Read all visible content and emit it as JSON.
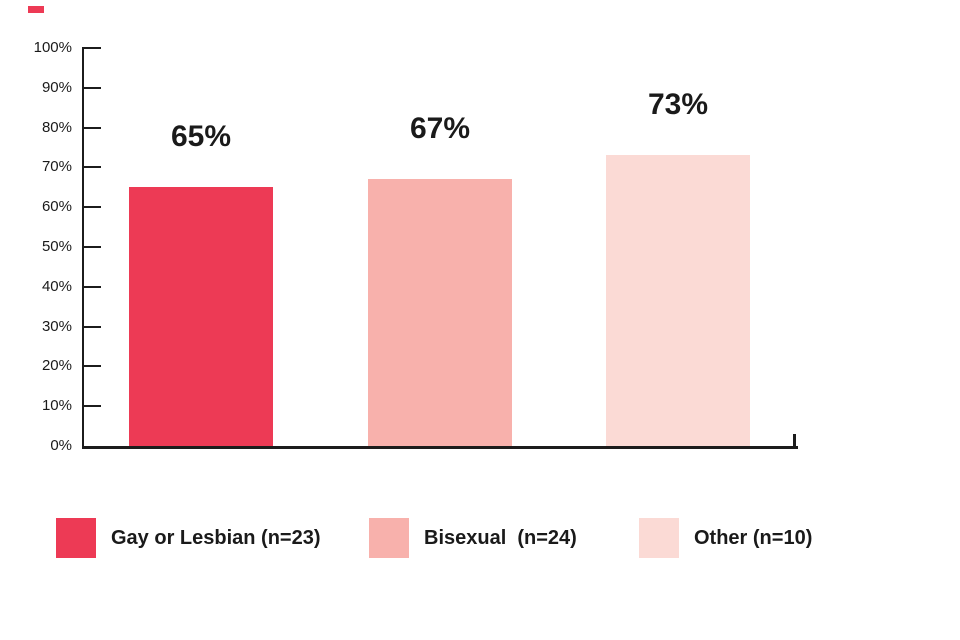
{
  "page": {
    "background": "#ffffff"
  },
  "decoration": {
    "corner_dash_color": "#ED3A55"
  },
  "chart_data": {
    "type": "bar",
    "title": "",
    "xlabel": "",
    "ylabel": "",
    "categories": [
      "Gay or Lesbian (n=23)",
      "Bisexual  (n=24)",
      "Other (n=10)"
    ],
    "values": [
      65,
      67,
      73
    ],
    "bar_labels": [
      "65%",
      "67%",
      "73%"
    ],
    "bar_colors": [
      "#ED3A55",
      "#F8B1AC",
      "#FBDAD5"
    ],
    "ylim": [
      0,
      100
    ],
    "ytick_step": 10,
    "ytick_labels": [
      "0%",
      "10%",
      "20%",
      "30%",
      "40%",
      "50%",
      "60%",
      "70%",
      "80%",
      "90%",
      "100%"
    ],
    "grid": false,
    "axis_color": "#1c1c1c",
    "text_color": "#1a1a1a",
    "legend_position": "bottom",
    "legend": [
      {
        "label": "Gay or Lesbian (n=23)",
        "color": "#ED3A55"
      },
      {
        "label": "Bisexual  (n=24)",
        "color": "#F8B1AC"
      },
      {
        "label": "Other (n=10)",
        "color": "#FBDAD5"
      }
    ]
  }
}
